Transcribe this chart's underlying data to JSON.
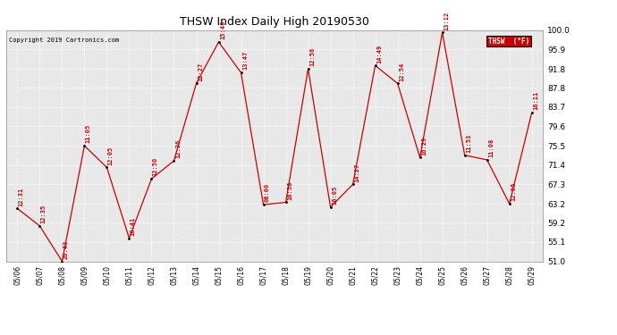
{
  "title": "THSW Index Daily High 20190530",
  "copyright": "Copyright 2019 Cartronics.com",
  "legend_label": "THSW  (°F)",
  "ylim": [
    51.0,
    100.0
  ],
  "yticks": [
    51.0,
    55.1,
    59.2,
    63.2,
    67.3,
    71.4,
    75.5,
    79.6,
    83.7,
    87.8,
    91.8,
    95.9,
    100.0
  ],
  "dates": [
    "05/06",
    "05/07",
    "05/08",
    "05/09",
    "05/10",
    "05/11",
    "05/12",
    "05/13",
    "05/14",
    "05/15",
    "05/16",
    "05/17",
    "05/18",
    "05/19",
    "05/20",
    "05/21",
    "05/22",
    "05/23",
    "05/24",
    "05/25",
    "05/26",
    "05/27",
    "05/28",
    "05/29"
  ],
  "values": [
    62.2,
    58.5,
    51.0,
    75.5,
    70.9,
    55.9,
    68.5,
    72.3,
    88.7,
    97.5,
    91.0,
    63.0,
    63.5,
    91.8,
    62.5,
    67.3,
    92.5,
    88.7,
    73.0,
    99.5,
    73.5,
    72.5,
    63.2,
    82.5
  ],
  "time_labels": [
    "12:31",
    "12:35",
    "20:43",
    "11:05",
    "12:05",
    "16:41",
    "12:50",
    "12:36",
    "12:27",
    "15:48",
    "13:47",
    "08:00",
    "16:58",
    "12:56",
    "16:05",
    "14:27",
    "14:49",
    "12:54",
    "16:29",
    "13:12",
    "11:53",
    "11:08",
    "12:06",
    "16:11"
  ],
  "line_color": "#cc0000",
  "dot_color": "#000000",
  "label_color": "#cc0000",
  "bg_color": "#ffffff",
  "plot_bg_color": "#e8e8e8",
  "grid_color": "#ffffff",
  "title_color": "#000000",
  "copyright_color": "#000000",
  "legend_bg": "#cc0000",
  "legend_text_color": "#ffffff",
  "figsize": [
    6.9,
    3.75
  ],
  "dpi": 100
}
